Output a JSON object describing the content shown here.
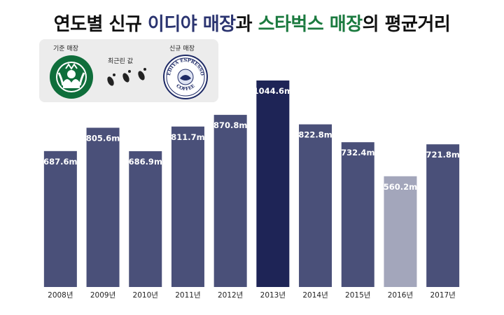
{
  "title": {
    "part1": "연도별 신규 ",
    "ediya": "이디야 매장",
    "part2": "과 ",
    "starbucks": "스타벅스 매장",
    "part3": "의 평균거리"
  },
  "legend": {
    "base_store_label": "기준 매장",
    "nearest_label": "최근린 값",
    "new_store_label": "신규 매장",
    "starbucks_icon": "starbucks-logo",
    "ediya_icon": "ediya-espresso-logo",
    "ediya_logo_top_text": "EDIYA ESPRESSO",
    "ediya_logo_bottom_text": "COFFEE"
  },
  "colors": {
    "bar_default": "#4a5079",
    "bar_max": "#1e2456",
    "bar_min": "#a3a6bb",
    "ediya_title": "#2b3470",
    "starbucks_title": "#1b7a3f"
  },
  "chart_data": {
    "type": "bar",
    "categories": [
      "2008년",
      "2009년",
      "2010년",
      "2011년",
      "2012년",
      "2013년",
      "2014년",
      "2015년",
      "2016년",
      "2017년"
    ],
    "values": [
      687.6,
      805.6,
      686.9,
      811.7,
      870.8,
      1044.6,
      822.8,
      732.4,
      560.2,
      721.8
    ],
    "value_labels": [
      "687.6m",
      "805.6m",
      "686.9m",
      "811.7m",
      "870.8m",
      "1044.6m",
      "822.8m",
      "732.4m",
      "560.2m",
      "721.8m"
    ],
    "unit": "m",
    "ylim": [
      0,
      1044.6
    ],
    "grid": false,
    "legend": "top-left"
  }
}
